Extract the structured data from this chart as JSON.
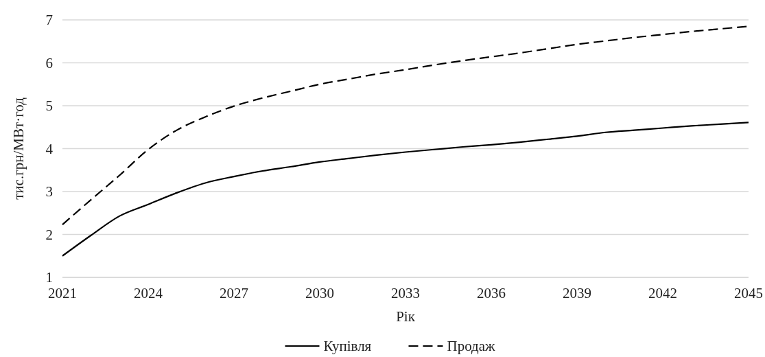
{
  "chart_data": {
    "type": "line",
    "xlabel": "Рік",
    "ylabel": "тис.грн/МВт·год",
    "x": [
      2021,
      2022,
      2023,
      2024,
      2025,
      2026,
      2027,
      2028,
      2029,
      2030,
      2031,
      2032,
      2033,
      2034,
      2035,
      2036,
      2037,
      2038,
      2039,
      2040,
      2041,
      2042,
      2043,
      2044,
      2045
    ],
    "series": [
      {
        "name": "Купівля",
        "color": "#000000",
        "line_style": "solid",
        "values": [
          1.5,
          1.98,
          2.43,
          2.7,
          2.97,
          3.2,
          3.35,
          3.48,
          3.58,
          3.69,
          3.77,
          3.85,
          3.92,
          3.98,
          4.04,
          4.09,
          4.15,
          4.22,
          4.29,
          4.38,
          4.43,
          4.48,
          4.53,
          4.57,
          4.61
        ]
      },
      {
        "name": "Продаж",
        "color": "#000000",
        "line_style": "dashed",
        "values": [
          2.23,
          2.81,
          3.38,
          3.98,
          4.43,
          4.74,
          4.99,
          5.18,
          5.34,
          5.5,
          5.62,
          5.74,
          5.84,
          5.95,
          6.05,
          6.14,
          6.23,
          6.33,
          6.43,
          6.51,
          6.59,
          6.66,
          6.73,
          6.79,
          6.85
        ]
      }
    ],
    "xlim": [
      2021,
      2045
    ],
    "xticks": [
      2021,
      2024,
      2027,
      2030,
      2033,
      2036,
      2039,
      2042,
      2045
    ],
    "ylim": [
      1,
      7
    ],
    "yticks": [
      1,
      2,
      3,
      4,
      5,
      6,
      7
    ],
    "grid": "y",
    "legend": "bottom",
    "marker": "none"
  }
}
